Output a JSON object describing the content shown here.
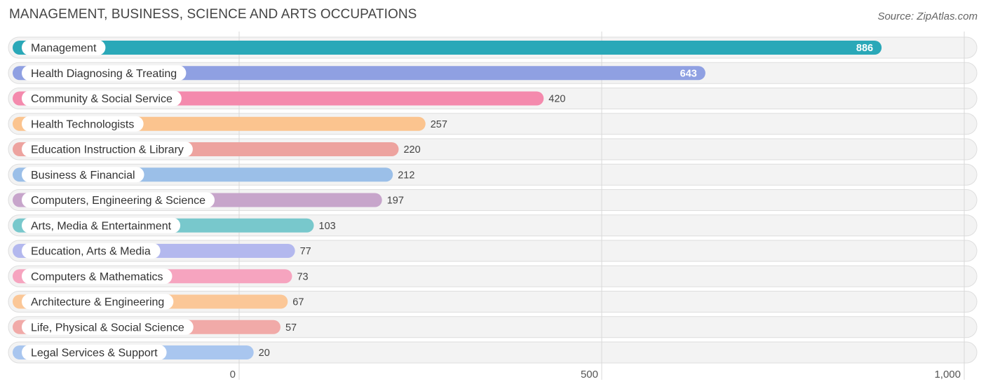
{
  "title": "MANAGEMENT, BUSINESS, SCIENCE AND ARTS OCCUPATIONS",
  "source": "Source: ZipAtlas.com",
  "chart_data": {
    "type": "bar",
    "orientation": "horizontal",
    "categories": [
      "Management",
      "Health Diagnosing & Treating",
      "Community & Social Service",
      "Health Technologists",
      "Education Instruction & Library",
      "Business & Financial",
      "Computers, Engineering & Science",
      "Arts, Media & Entertainment",
      "Education, Arts & Media",
      "Computers & Mathematics",
      "Architecture & Engineering",
      "Life, Physical & Social Science",
      "Legal Services & Support"
    ],
    "values": [
      886,
      643,
      420,
      257,
      220,
      212,
      197,
      103,
      77,
      73,
      67,
      57,
      20
    ],
    "value_labels": [
      "886",
      "643",
      "420",
      "257",
      "220",
      "212",
      "197",
      "103",
      "77",
      "73",
      "67",
      "57",
      "20"
    ],
    "colors": [
      "#2aa8b8",
      "#8fa0e2",
      "#f48aad",
      "#fbc48f",
      "#eda39f",
      "#9bbfe8",
      "#c7a5cb",
      "#78c8cc",
      "#b3b8ee",
      "#f6a4bf",
      "#fbc797",
      "#f1aaa8",
      "#a9c6ef"
    ],
    "xticks": [
      0,
      500,
      1000
    ],
    "xtick_labels": [
      "0",
      "500",
      "1,000"
    ],
    "xlim": [
      0,
      1000
    ],
    "grid": true,
    "title": "MANAGEMENT, BUSINESS, SCIENCE AND ARTS OCCUPATIONS",
    "xlabel": "",
    "ylabel": ""
  }
}
